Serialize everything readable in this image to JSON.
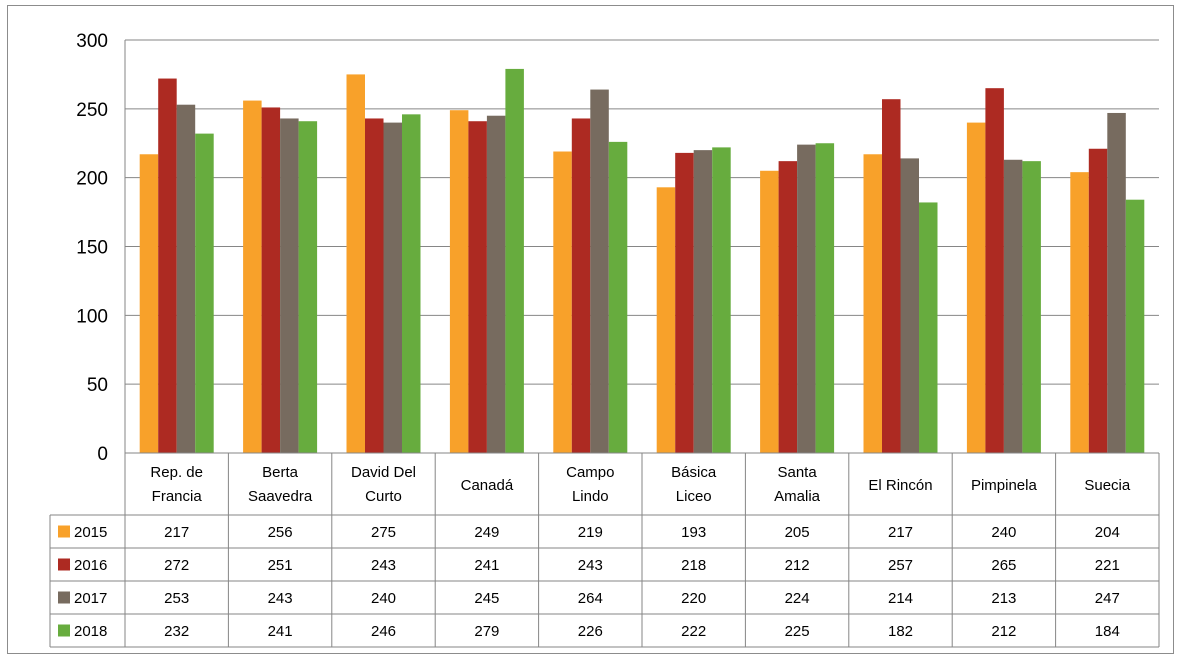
{
  "chart_data": {
    "type": "bar",
    "categories": [
      [
        "Rep. de",
        "Francia"
      ],
      [
        "Berta",
        "Saavedra"
      ],
      [
        "David Del",
        "Curto"
      ],
      [
        "Canadá"
      ],
      [
        "Campo",
        "Lindo"
      ],
      [
        "Básica",
        "Liceo"
      ],
      [
        "Santa",
        "Amalia"
      ],
      [
        "El Rincón"
      ],
      [
        "Pimpinela"
      ],
      [
        "Suecia"
      ]
    ],
    "series": [
      {
        "name": "2015",
        "color": "#f8a12a",
        "values": [
          217,
          256,
          275,
          249,
          219,
          193,
          205,
          217,
          240,
          204
        ]
      },
      {
        "name": "2016",
        "color": "#ad2a22",
        "values": [
          272,
          251,
          243,
          241,
          243,
          218,
          212,
          257,
          265,
          221
        ]
      },
      {
        "name": "2017",
        "color": "#776b5f",
        "values": [
          253,
          243,
          240,
          245,
          264,
          220,
          224,
          214,
          213,
          247
        ]
      },
      {
        "name": "2018",
        "color": "#67ac3e",
        "values": [
          232,
          241,
          246,
          279,
          226,
          222,
          225,
          182,
          212,
          184
        ]
      }
    ],
    "yticks": [
      0,
      50,
      100,
      150,
      200,
      250,
      300
    ],
    "ylim": [
      0,
      300
    ],
    "grid": true,
    "legend": "data-table-left"
  }
}
